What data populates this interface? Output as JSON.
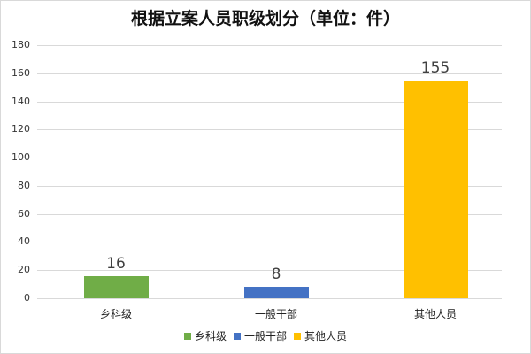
{
  "chart_data": {
    "type": "bar",
    "title": "根据立案人员职级划分（单位：件）",
    "categories": [
      "乡科级",
      "一般干部",
      "其他人员"
    ],
    "values": [
      16,
      8,
      155
    ],
    "colors": [
      "#70ad47",
      "#4472c4",
      "#ffc000"
    ],
    "xlabel": "",
    "ylabel": "",
    "ylim": [
      0,
      180
    ],
    "yticks": [
      "0",
      "20",
      "40",
      "60",
      "80",
      "100",
      "120",
      "140",
      "160",
      "180"
    ],
    "grid": true,
    "legend_position": "bottom",
    "legend": [
      "乡科级",
      "一般干部",
      "其他人员"
    ],
    "data_labels": [
      "16",
      "8",
      "155"
    ]
  }
}
